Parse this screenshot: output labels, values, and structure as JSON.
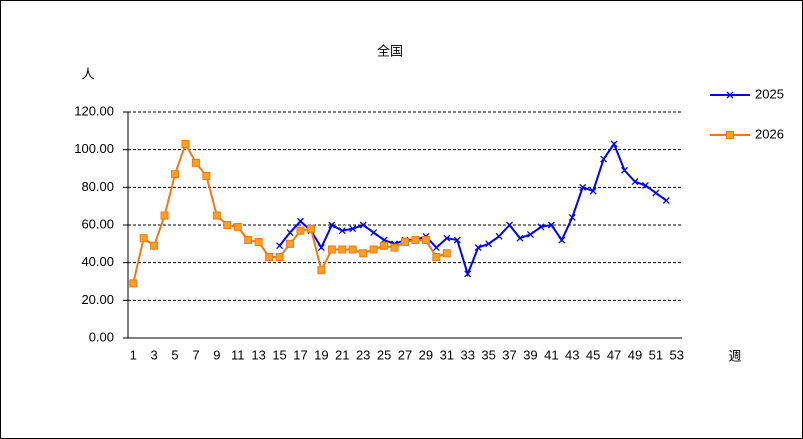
{
  "chart_data": {
    "type": "line",
    "title": "全国",
    "y_label": "人",
    "x_label": "週",
    "categories": [
      1,
      null,
      3,
      null,
      5,
      null,
      7,
      null,
      9,
      null,
      11,
      null,
      13,
      null,
      15,
      null,
      17,
      null,
      19,
      null,
      21,
      null,
      23,
      null,
      25,
      null,
      27,
      null,
      29,
      null,
      31,
      null,
      33,
      null,
      35,
      null,
      37,
      null,
      39,
      null,
      41,
      null,
      43,
      null,
      45,
      null,
      47,
      null,
      49,
      null,
      51,
      null,
      53
    ],
    "series": [
      {
        "name": "2025",
        "color": "#0000ff",
        "marker": "x",
        "values": [
          null,
          null,
          null,
          null,
          null,
          null,
          null,
          null,
          null,
          null,
          null,
          null,
          null,
          null,
          49,
          56,
          62,
          57,
          48,
          60,
          57,
          58,
          60,
          56,
          52,
          50,
          52,
          52,
          54,
          48,
          53,
          52,
          34,
          48,
          50,
          54,
          60,
          53,
          55,
          59,
          60,
          52,
          64,
          80,
          78,
          95,
          103,
          89,
          83,
          81,
          77,
          73,
          null
        ]
      },
      {
        "name": "2026",
        "color": "#f07818",
        "marker": "square",
        "values": [
          29,
          53,
          49,
          65,
          87,
          103,
          93,
          86,
          65,
          60,
          59,
          52,
          51,
          43,
          43,
          50,
          57,
          58,
          36,
          47,
          47,
          47,
          45,
          47,
          49,
          48,
          51,
          52,
          52,
          43,
          45,
          null,
          null,
          null,
          null,
          null,
          null,
          null,
          null,
          null,
          null,
          null,
          null,
          null,
          null,
          null,
          null,
          null,
          null,
          null,
          null,
          null,
          null
        ]
      }
    ],
    "ylim": [
      0,
      120
    ],
    "yticks": [
      {
        "value": 0,
        "label": "0.00"
      },
      {
        "value": 20,
        "label": "20.00"
      },
      {
        "value": 40,
        "label": "40.00"
      },
      {
        "value": 60,
        "label": "60.00"
      },
      {
        "value": 80,
        "label": "80.00"
      },
      {
        "value": 100,
        "label": "100.00"
      },
      {
        "value": 120,
        "label": "120.00"
      }
    ],
    "grid": true,
    "legend": "right"
  }
}
